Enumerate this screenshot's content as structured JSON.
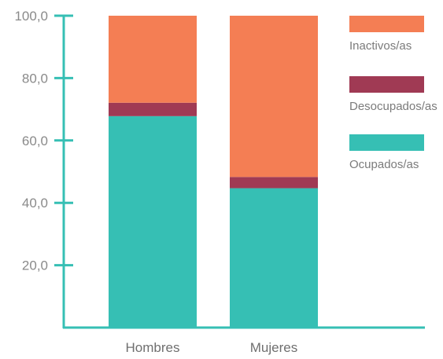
{
  "chart_data": {
    "type": "bar",
    "stacked": true,
    "categories": [
      "Hombres",
      "Mujeres"
    ],
    "series": [
      {
        "name": "Ocupados/as",
        "values": [
          67.8,
          44.7
        ],
        "color": "#36bfb4"
      },
      {
        "name": "Desocupados/as",
        "values": [
          4.3,
          3.6
        ],
        "color": "#a03a54"
      },
      {
        "name": "Inactivos/as",
        "values": [
          27.9,
          51.7
        ],
        "color": "#f47e54"
      }
    ],
    "yticks": [
      "100,0",
      "80,0",
      "60,0",
      "40,0",
      "20,0"
    ],
    "ytick_values": [
      100,
      80,
      60,
      40,
      20
    ],
    "ylim": [
      0,
      100
    ],
    "legend_order": [
      "Inactivos/as",
      "Desocupados/as",
      "Ocupados/as"
    ],
    "legend_position": "right",
    "axis_color": "#36bfb4",
    "grid": false,
    "title": "",
    "xlabel": "",
    "ylabel": ""
  }
}
